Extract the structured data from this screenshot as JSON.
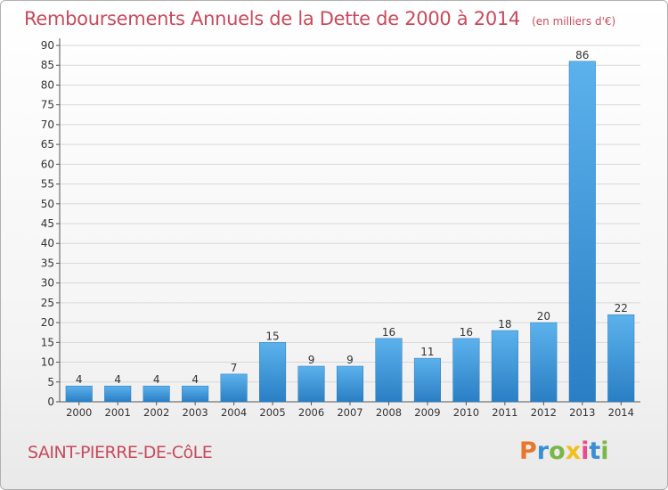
{
  "chart_data": {
    "type": "bar",
    "title": "Remboursements Annuels de la Dette de 2000 à 2014",
    "subtitle": "(en milliers d'€)",
    "categories": [
      "2000",
      "2001",
      "2002",
      "2003",
      "2004",
      "2005",
      "2006",
      "2007",
      "2008",
      "2009",
      "2010",
      "2011",
      "2012",
      "2013",
      "2014"
    ],
    "values": [
      4,
      4,
      4,
      4,
      7,
      15,
      9,
      9,
      16,
      11,
      16,
      18,
      20,
      86,
      22
    ],
    "ylim": [
      0,
      90
    ],
    "yticks": [
      0,
      5,
      10,
      15,
      20,
      25,
      30,
      35,
      40,
      45,
      50,
      55,
      60,
      65,
      70,
      75,
      80,
      85,
      90
    ],
    "grid": true,
    "bar_color": "#3a96d8",
    "bar_color_dark": "#2a78b8"
  },
  "commune": "SAINT-PIERRE-DE-CôLE",
  "logo": {
    "letters": [
      "P",
      "r",
      "o",
      "x",
      "i",
      "t",
      "i"
    ],
    "colors": [
      "#e8762c",
      "#3a8fd4",
      "#7ab648",
      "#f0c020",
      "#e84c8c",
      "#3a8fd4",
      "#7ab648"
    ]
  },
  "colors": {
    "title": "#c84a5c",
    "grid": "#d8d8d8",
    "axis": "#555555"
  }
}
